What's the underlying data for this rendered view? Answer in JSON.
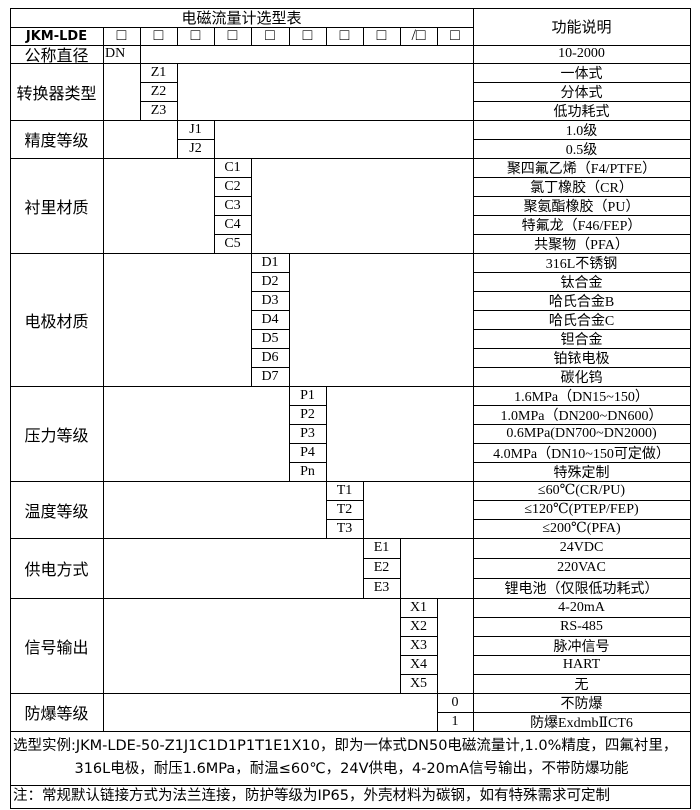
{
  "header": {
    "title": "电磁流量计选型表",
    "function_header": "功能说明",
    "model_prefix": "JKM-LDE",
    "slots": [
      "□",
      "□",
      "□",
      "□",
      "□",
      "□",
      "□",
      "□",
      "/□",
      "□"
    ]
  },
  "groups": [
    {
      "label": "公称直径",
      "codes": [
        "DN"
      ],
      "descriptions": [
        "10-2000"
      ]
    },
    {
      "label": "转换器类型",
      "codes": [
        "Z1",
        "Z2",
        "Z3"
      ],
      "descriptions": [
        "一体式",
        "分体式",
        "低功耗式"
      ]
    },
    {
      "label": "精度等级",
      "codes": [
        "J1",
        "J2"
      ],
      "descriptions": [
        "1.0级",
        "0.5级"
      ]
    },
    {
      "label": "衬里材质",
      "codes": [
        "C1",
        "C2",
        "C3",
        "C4",
        "C5"
      ],
      "descriptions": [
        "聚四氟乙烯（F4/PTFE）",
        "氯丁橡胶（CR）",
        "聚氨酯橡胶（PU）",
        "特氟龙（F46/FEP）",
        "共聚物（PFA）"
      ]
    },
    {
      "label": "电极材质",
      "codes": [
        "D1",
        "D2",
        "D3",
        "D4",
        "D5",
        "D6",
        "D7"
      ],
      "descriptions": [
        "316L不锈钢",
        "钛合金",
        "哈氏合金B",
        "哈氏合金C",
        "钽合金",
        "铂铱电极",
        "碳化钨"
      ]
    },
    {
      "label": "压力等级",
      "codes": [
        "P1",
        "P2",
        "P3",
        "P4",
        "Pn"
      ],
      "descriptions": [
        "1.6MPa（DN15~150）",
        "1.0MPa（DN200~DN600）",
        "0.6MPa(DN700~DN2000)",
        "4.0MPa（DN10~150可定做）",
        "特殊定制"
      ]
    },
    {
      "label": "温度等级",
      "codes": [
        "T1",
        "T2",
        "T3"
      ],
      "descriptions": [
        "≤60℃(CR/PU)",
        "≤120℃(PTEP/FEP)",
        "≤200℃(PFA)"
      ]
    },
    {
      "label": "供电方式",
      "codes": [
        "E1",
        "E2",
        "E3"
      ],
      "descriptions": [
        "24VDC",
        "220VAC",
        "锂电池（仅限低功耗式）"
      ]
    },
    {
      "label": "信号输出",
      "codes": [
        "X1",
        "X2",
        "X3",
        "X4",
        "X5"
      ],
      "descriptions": [
        "4-20mA",
        "RS-485",
        "脉冲信号",
        "HART",
        "无"
      ]
    },
    {
      "label": "防爆等级",
      "codes": [
        "0",
        "1"
      ],
      "descriptions": [
        "不防爆",
        "防爆ExdmbⅡCT6"
      ]
    }
  ],
  "example": {
    "line1": "选型实例:JKM-LDE-50-Z1J1C1D1P1T1E1X10，即为一体式DN50电磁流量计,1.0%精度，四氟衬里，",
    "line2": "316L电极，耐压1.6MPa，耐温≤60℃，24V供电，4-20mA信号输出，不带防爆功能"
  },
  "note": "注：常规默认链接方式为法兰连接，防护等级为IP65，外壳材料为碳钢，如有特殊需求可定制"
}
